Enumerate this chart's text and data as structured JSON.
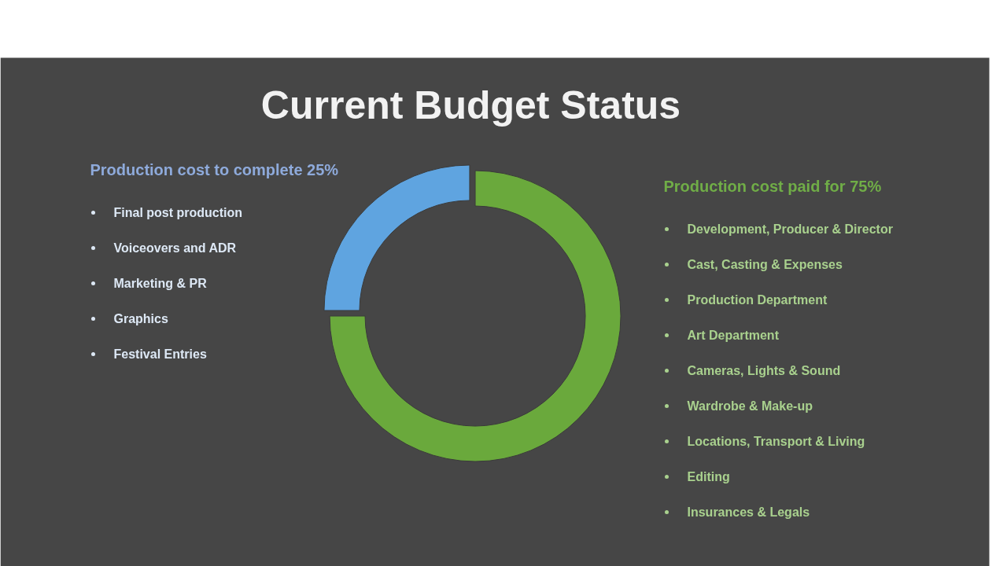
{
  "chart_data": [
    {
      "type": "other",
      "title": "Production cost to complete 25%",
      "color": "#8eaadb",
      "annotations": [
        "Final post production",
        "Voiceovers and ADR",
        "Marketing & PR",
        "Graphics",
        "Festival Entries"
      ]
    },
    {
      "type": "donut",
      "title": "Current Budget Status",
      "categories": [
        null,
        null
      ],
      "values": [
        25,
        75
      ],
      "colors": [
        "#5fa4e0",
        "#6aa93c"
      ]
    },
    {
      "type": "other",
      "title": "Production cost paid for 75%",
      "color": "#70ad47",
      "annotations": [
        "Development, Producer & Director",
        "Cast, Casting & Expenses",
        "Production Department",
        "Art Department",
        "Cameras, Lights & Sound",
        "Wardrobe & Make-up",
        "Locations, Transport & Living",
        "Editing",
        "Insurances & Legals"
      ]
    }
  ]
}
